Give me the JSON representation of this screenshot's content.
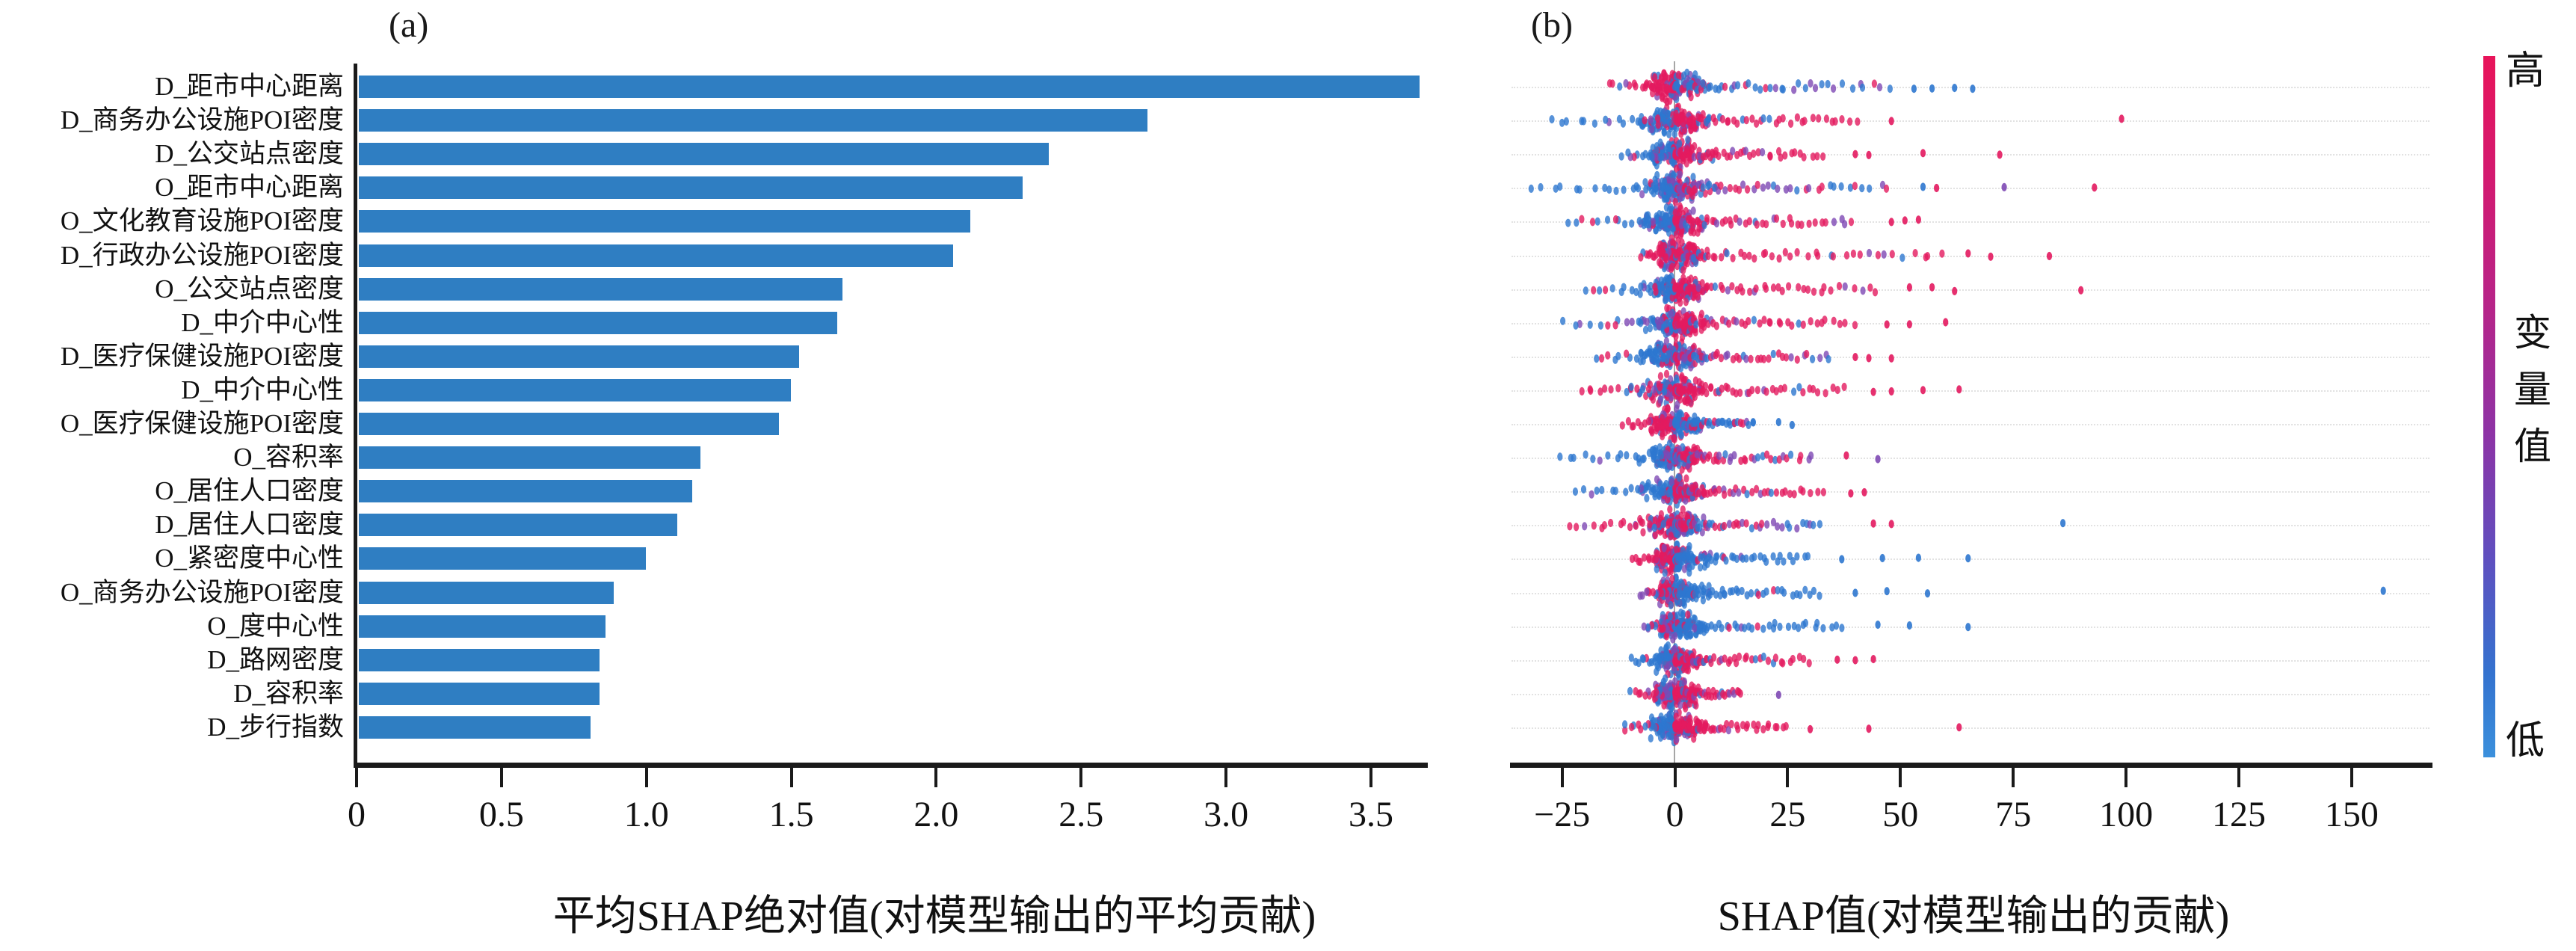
{
  "chart_data": [
    {
      "type": "bar",
      "title": "(a)",
      "xlabel": "平均SHAP绝对值(对模型输出的平均贡献)",
      "ylabel": "",
      "xlim": [
        0,
        3.7
      ],
      "xticks": [
        0,
        0.5,
        1.0,
        1.5,
        2.0,
        2.5,
        3.0,
        3.5
      ],
      "xtick_labels": [
        "0",
        "0.5",
        "1.0",
        "1.5",
        "2.0",
        "2.5",
        "3.0",
        "3.5"
      ],
      "bar_color": "#2f7ec2",
      "grid": false,
      "categories": [
        "D_距市中心距离",
        "D_商务办公设施POI密度",
        "D_公交站点密度",
        "O_距市中心距离",
        "O_文化教育设施POI密度",
        "D_行政办公设施POI密度",
        "O_公交站点密度",
        "D_中介中心性",
        "D_医疗保健设施POI密度",
        "D_中介中心性",
        "O_医疗保健设施POI密度",
        "O_容积率",
        "O_居住人口密度",
        "D_居住人口密度",
        "O_紧密度中心性",
        "O_商务办公设施POI密度",
        "O_度中心性",
        "D_路网密度",
        "D_容积率",
        "D_步行指数"
      ],
      "values": [
        3.66,
        2.72,
        2.38,
        2.29,
        2.11,
        2.05,
        1.67,
        1.65,
        1.52,
        1.49,
        1.45,
        1.18,
        1.15,
        1.1,
        0.99,
        0.88,
        0.85,
        0.83,
        0.83,
        0.8
      ]
    },
    {
      "type": "scatter",
      "subtype": "beeswarm",
      "title": "(b)",
      "xlabel": "SHAP值(对模型输出的贡献)",
      "xlim": [
        -37,
        168
      ],
      "xticks": [
        -25,
        0,
        25,
        50,
        75,
        100,
        125,
        150
      ],
      "xtick_labels": [
        "−25",
        "0",
        "25",
        "50",
        "75",
        "100",
        "125",
        "150"
      ],
      "grid": "dotted-rows",
      "zero_line": true,
      "point_colors": {
        "high": "#e31a5f",
        "mid": "#7e49b4",
        "low": "#2d77cf"
      },
      "colorbar": {
        "high_label": "高",
        "axis_label": "变量值",
        "low_label": "低",
        "top_color": "#e8145a",
        "bottom_color": "#3b90dc"
      },
      "rows": [
        {
          "feature": "D_距市中心距离",
          "neg": -15,
          "pos": 48,
          "neg_color": "r",
          "pos_color": "bm",
          "outliers": [
            [
              53,
              "b"
            ],
            [
              57,
              "b"
            ],
            [
              62,
              "b"
            ],
            [
              66,
              "b"
            ]
          ]
        },
        {
          "feature": "D_商务办公设施POI密度",
          "neg": -29,
          "pos": 41,
          "neg_color": "b",
          "pos_color": "r",
          "outliers": [
            [
              48,
              "r"
            ],
            [
              99,
              "r"
            ]
          ]
        },
        {
          "feature": "D_公交站点密度",
          "neg": -12,
          "pos": 33,
          "neg_color": "b",
          "pos_color": "r",
          "outliers": [
            [
              40,
              "r"
            ],
            [
              43,
              "r"
            ],
            [
              55,
              "r"
            ],
            [
              72,
              "r"
            ]
          ]
        },
        {
          "feature": "O_距市中心距离",
          "neg": -33,
          "pos": 48,
          "neg_color": "b",
          "pos_color": "m",
          "outliers": [
            [
              55,
              "b"
            ],
            [
              58,
              "r"
            ],
            [
              73,
              "m"
            ],
            [
              93,
              "r"
            ]
          ]
        },
        {
          "feature": "O_文化教育设施POI密度",
          "neg": -25,
          "pos": 40,
          "neg_color": "b",
          "pos_color": "rm",
          "outliers": [
            [
              48,
              "r"
            ],
            [
              51,
              "r"
            ],
            [
              54,
              "r"
            ]
          ]
        },
        {
          "feature": "D_行政办公设施POI密度",
          "neg": -8,
          "pos": 60,
          "neg_color": "r",
          "pos_color": "r",
          "outliers": [
            [
              65,
              "r"
            ],
            [
              70,
              "r"
            ],
            [
              83,
              "r"
            ]
          ]
        },
        {
          "feature": "O_公交站点密度",
          "neg": -20,
          "pos": 45,
          "neg_color": "b",
          "pos_color": "r",
          "outliers": [
            [
              52,
              "r"
            ],
            [
              57,
              "r"
            ],
            [
              62,
              "r"
            ],
            [
              90,
              "r"
            ]
          ]
        },
        {
          "feature": "D_中介中心性",
          "neg": -25,
          "pos": 40,
          "neg_color": "b",
          "pos_color": "r",
          "outliers": [
            [
              47,
              "r"
            ],
            [
              52,
              "r"
            ],
            [
              60,
              "r"
            ]
          ]
        },
        {
          "feature": "D_医疗保健设施POI密度",
          "neg": -18,
          "pos": 35,
          "neg_color": "b",
          "pos_color": "m",
          "outliers": [
            [
              40,
              "r"
            ],
            [
              43,
              "r"
            ],
            [
              48,
              "r"
            ]
          ]
        },
        {
          "feature": "D_中介中心性",
          "neg": -22,
          "pos": 38,
          "neg_color": "m",
          "pos_color": "r",
          "outliers": [
            [
              44,
              "r"
            ],
            [
              48,
              "r"
            ],
            [
              55,
              "r"
            ],
            [
              63,
              "r"
            ]
          ]
        },
        {
          "feature": "O_医疗保健设施POI密度",
          "neg": -12,
          "pos": 18,
          "neg_color": "r",
          "pos_color": "b",
          "outliers": [
            [
              23,
              "b"
            ],
            [
              26,
              "b"
            ]
          ]
        },
        {
          "feature": "O_容积率",
          "neg": -27,
          "pos": 31,
          "neg_color": "b",
          "pos_color": "rm",
          "outliers": [
            [
              38,
              "r"
            ],
            [
              45,
              "m"
            ]
          ]
        },
        {
          "feature": "O_居住人口密度",
          "neg": -23,
          "pos": 33,
          "neg_color": "b",
          "pos_color": "rm",
          "outliers": [
            [
              39,
              "r"
            ],
            [
              42,
              "r"
            ]
          ]
        },
        {
          "feature": "D_居住人口密度",
          "neg": -25,
          "pos": 33,
          "neg_color": "rm",
          "pos_color": "m",
          "outliers": [
            [
              44,
              "r"
            ],
            [
              48,
              "r"
            ],
            [
              86,
              "b"
            ]
          ]
        },
        {
          "feature": "O_紧密度中心性",
          "neg": -10,
          "pos": 30,
          "neg_color": "r",
          "pos_color": "b",
          "outliers": [
            [
              37,
              "b"
            ],
            [
              46,
              "b"
            ],
            [
              54,
              "b"
            ],
            [
              65,
              "b"
            ]
          ]
        },
        {
          "feature": "O_商务办公设施POI密度",
          "neg": -8,
          "pos": 33,
          "neg_color": "m",
          "pos_color": "b",
          "outliers": [
            [
              40,
              "b"
            ],
            [
              47,
              "b"
            ],
            [
              56,
              "b"
            ],
            [
              157,
              "b"
            ]
          ]
        },
        {
          "feature": "O_度中心性",
          "neg": -7,
          "pos": 38,
          "neg_color": "m",
          "pos_color": "b",
          "outliers": [
            [
              45,
              "b"
            ],
            [
              52,
              "b"
            ],
            [
              65,
              "b"
            ]
          ]
        },
        {
          "feature": "D_路网密度",
          "neg": -10,
          "pos": 30,
          "neg_color": "b",
          "pos_color": "r",
          "outliers": [
            [
              36,
              "r"
            ],
            [
              40,
              "r"
            ],
            [
              44,
              "r"
            ]
          ]
        },
        {
          "feature": "D_容积率",
          "neg": -10,
          "pos": 15,
          "neg_color": "m",
          "pos_color": "r",
          "outliers": [
            [
              23,
              "m"
            ]
          ]
        },
        {
          "feature": "D_步行指数",
          "neg": -12,
          "pos": 25,
          "neg_color": "b",
          "pos_color": "r",
          "outliers": [
            [
              30,
              "r"
            ],
            [
              43,
              "r"
            ],
            [
              63,
              "r"
            ]
          ]
        }
      ]
    }
  ]
}
